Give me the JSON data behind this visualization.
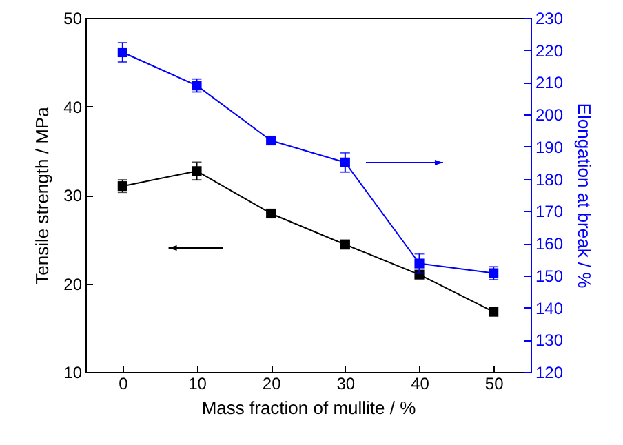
{
  "chart_data": {
    "type": "line",
    "xlabel": "Mass fraction of mullite / %",
    "ylabel": "Tensile strength / MPa",
    "y2label": "Elongation at break / %",
    "x": [
      0,
      10,
      20,
      30,
      40,
      50
    ],
    "series": [
      {
        "color": "#000000",
        "values": [
          31.0,
          32.7,
          27.9,
          24.4,
          21.0,
          16.8
        ],
        "errors": [
          0.7,
          1.0,
          null,
          0.5,
          null,
          null
        ]
      },
      {
        "color": "#0000ff",
        "axis": "y2",
        "values": [
          219.3,
          209.0,
          191.9,
          185.1,
          153.7,
          150.7
        ],
        "errors": [
          3,
          2,
          null,
          3,
          3,
          2
        ]
      }
    ],
    "xlim": [
      -5,
      55
    ],
    "xticks": [
      0,
      10,
      20,
      30,
      40,
      50
    ],
    "ylim": [
      10,
      50
    ],
    "yticks": [
      10,
      20,
      30,
      40,
      50
    ],
    "y2lim": [
      120,
      230
    ],
    "y2ticks": [
      120,
      130,
      140,
      150,
      160,
      170,
      180,
      190,
      200,
      210,
      220,
      230
    ],
    "marker": "square",
    "line_style": "solid",
    "grid": false
  }
}
